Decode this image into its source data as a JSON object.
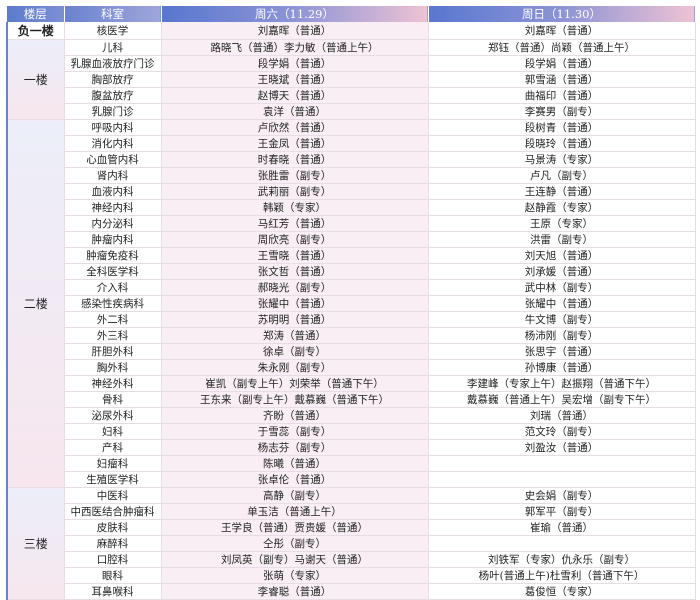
{
  "header": {
    "floor": "楼层",
    "dept": "科室",
    "sat": "周六（11.29）",
    "sun": "周日（11.30）"
  },
  "colors": {
    "header_blue": "#5a7ccd",
    "header_pink": "#eec3d4",
    "saturday_bg": "#f8eef3"
  },
  "floors": [
    {
      "name": "负一楼",
      "rows": [
        {
          "dept": "核医学",
          "sat": "刘嘉晖（普通）",
          "sun": "刘嘉晖（普通）"
        }
      ]
    },
    {
      "name": "一楼",
      "rows": [
        {
          "dept": "儿科",
          "sat": "路晓飞（普通）李力敏（普通上午）",
          "sun": "郑钰（普通）尚颖（普通上午）"
        },
        {
          "dept": "乳腺血液放疗门诊",
          "sat": "段学娟（普通）",
          "sun": "段学娟（普通）"
        },
        {
          "dept": "胸部放疗",
          "sat": "王晓斌（普通）",
          "sun": "郭雪涵（普通）"
        },
        {
          "dept": "腹盆放疗",
          "sat": "赵博天（普通）",
          "sun": "曲福印（普通）"
        },
        {
          "dept": "乳腺门诊",
          "sat": "袁洋（普通）",
          "sun": "李赛男（副专）"
        }
      ]
    },
    {
      "name": "二楼",
      "rows": [
        {
          "dept": "呼吸内科",
          "sat": "卢欣然（普通）",
          "sun": "段树青（普通）"
        },
        {
          "dept": "消化内科",
          "sat": "王金凤（普通）",
          "sun": "段晓玲（普通）"
        },
        {
          "dept": "心血管内科",
          "sat": "时春晓（普通）",
          "sun": "马景涛（专家）"
        },
        {
          "dept": "肾内科",
          "sat": "张胜雷（副专）",
          "sun": "卢凡（副专）"
        },
        {
          "dept": "血液内科",
          "sat": "武莉丽（副专）",
          "sun": "王连静（普通）"
        },
        {
          "dept": "神经内科",
          "sat": "韩颖（专家）",
          "sun": "赵静霞（专家）"
        },
        {
          "dept": "内分泌科",
          "sat": "马红芳（普通）",
          "sun": "王原（专家）"
        },
        {
          "dept": "肿瘤内科",
          "sat": "周欣亮（副专）",
          "sun": "洪雷（副专）"
        },
        {
          "dept": "肿瘤免疫科",
          "sat": "王雪晓（普通）",
          "sun": "刘天旭（普通）"
        },
        {
          "dept": "全科医学科",
          "sat": "张文哲（普通）",
          "sun": "刘承媛（普通）"
        },
        {
          "dept": "介入科",
          "sat": "郝晓光（副专）",
          "sun": "武中林（副专）"
        },
        {
          "dept": "感染性疾病科",
          "sat": "张耀中（普通）",
          "sun": "张耀中（普通）"
        },
        {
          "dept": "外二科",
          "sat": "苏明明（普通）",
          "sun": "牛文博（副专）"
        },
        {
          "dept": "外三科",
          "sat": "郑涛（普通）",
          "sun": "杨沛刚（副专）"
        },
        {
          "dept": "肝胆外科",
          "sat": "徐卓（副专）",
          "sun": "张思宇（普通）"
        },
        {
          "dept": "胸外科",
          "sat": "朱永刚（副专）",
          "sun": "孙博康（普通）"
        },
        {
          "dept": "神经外科",
          "sat": "崔凯（副专上午）刘荣举（普通下午）",
          "sun": "李建峰（专家上午）赵振翔（普通下午）"
        },
        {
          "dept": "骨科",
          "sat": "王东来（副专上午）戴慕巍（普通下午）",
          "sun": "戴慕巍（普通上午）吴宏增（副专下午）"
        },
        {
          "dept": "泌尿外科",
          "sat": "齐盼（普通）",
          "sun": "刘瑞（普通）"
        },
        {
          "dept": "妇科",
          "sat": "于雪蕊（副专）",
          "sun": "范文玲（副专）"
        },
        {
          "dept": "产科",
          "sat": "杨志芬（副专）",
          "sun": "刘盈汝（普通）"
        },
        {
          "dept": "妇瘤科",
          "sat": "陈曦（普通）",
          "sun": ""
        },
        {
          "dept": "生殖医学科",
          "sat": "张卓伦（普通）",
          "sun": ""
        }
      ]
    },
    {
      "name": "三楼",
      "rows": [
        {
          "dept": "中医科",
          "sat": "高静（副专）",
          "sun": "史会娟（副专）"
        },
        {
          "dept": "中西医结合肿瘤科",
          "sat": "单玉洁（普通上午）",
          "sun": "郭军平（副专）"
        },
        {
          "dept": "皮肤科",
          "sat": "王学良（普通）贾贵媛（普通）",
          "sun": "崔瑜（普通）"
        },
        {
          "dept": "麻醉科",
          "sat": "仝彤（副专）",
          "sun": ""
        },
        {
          "dept": "口腔科",
          "sat": "刘凤英（副专）马谢天（普通）",
          "sun": "刘铁军（专家）仇永乐（副专）"
        },
        {
          "dept": "眼科",
          "sat": "张萌（专家）",
          "sun": "杨叶(普通上午)杜雪利（普通下午）"
        },
        {
          "dept": "耳鼻喉科",
          "sat": "李睿聪（普通）",
          "sun": "葛俊恒（专家）"
        }
      ]
    }
  ]
}
